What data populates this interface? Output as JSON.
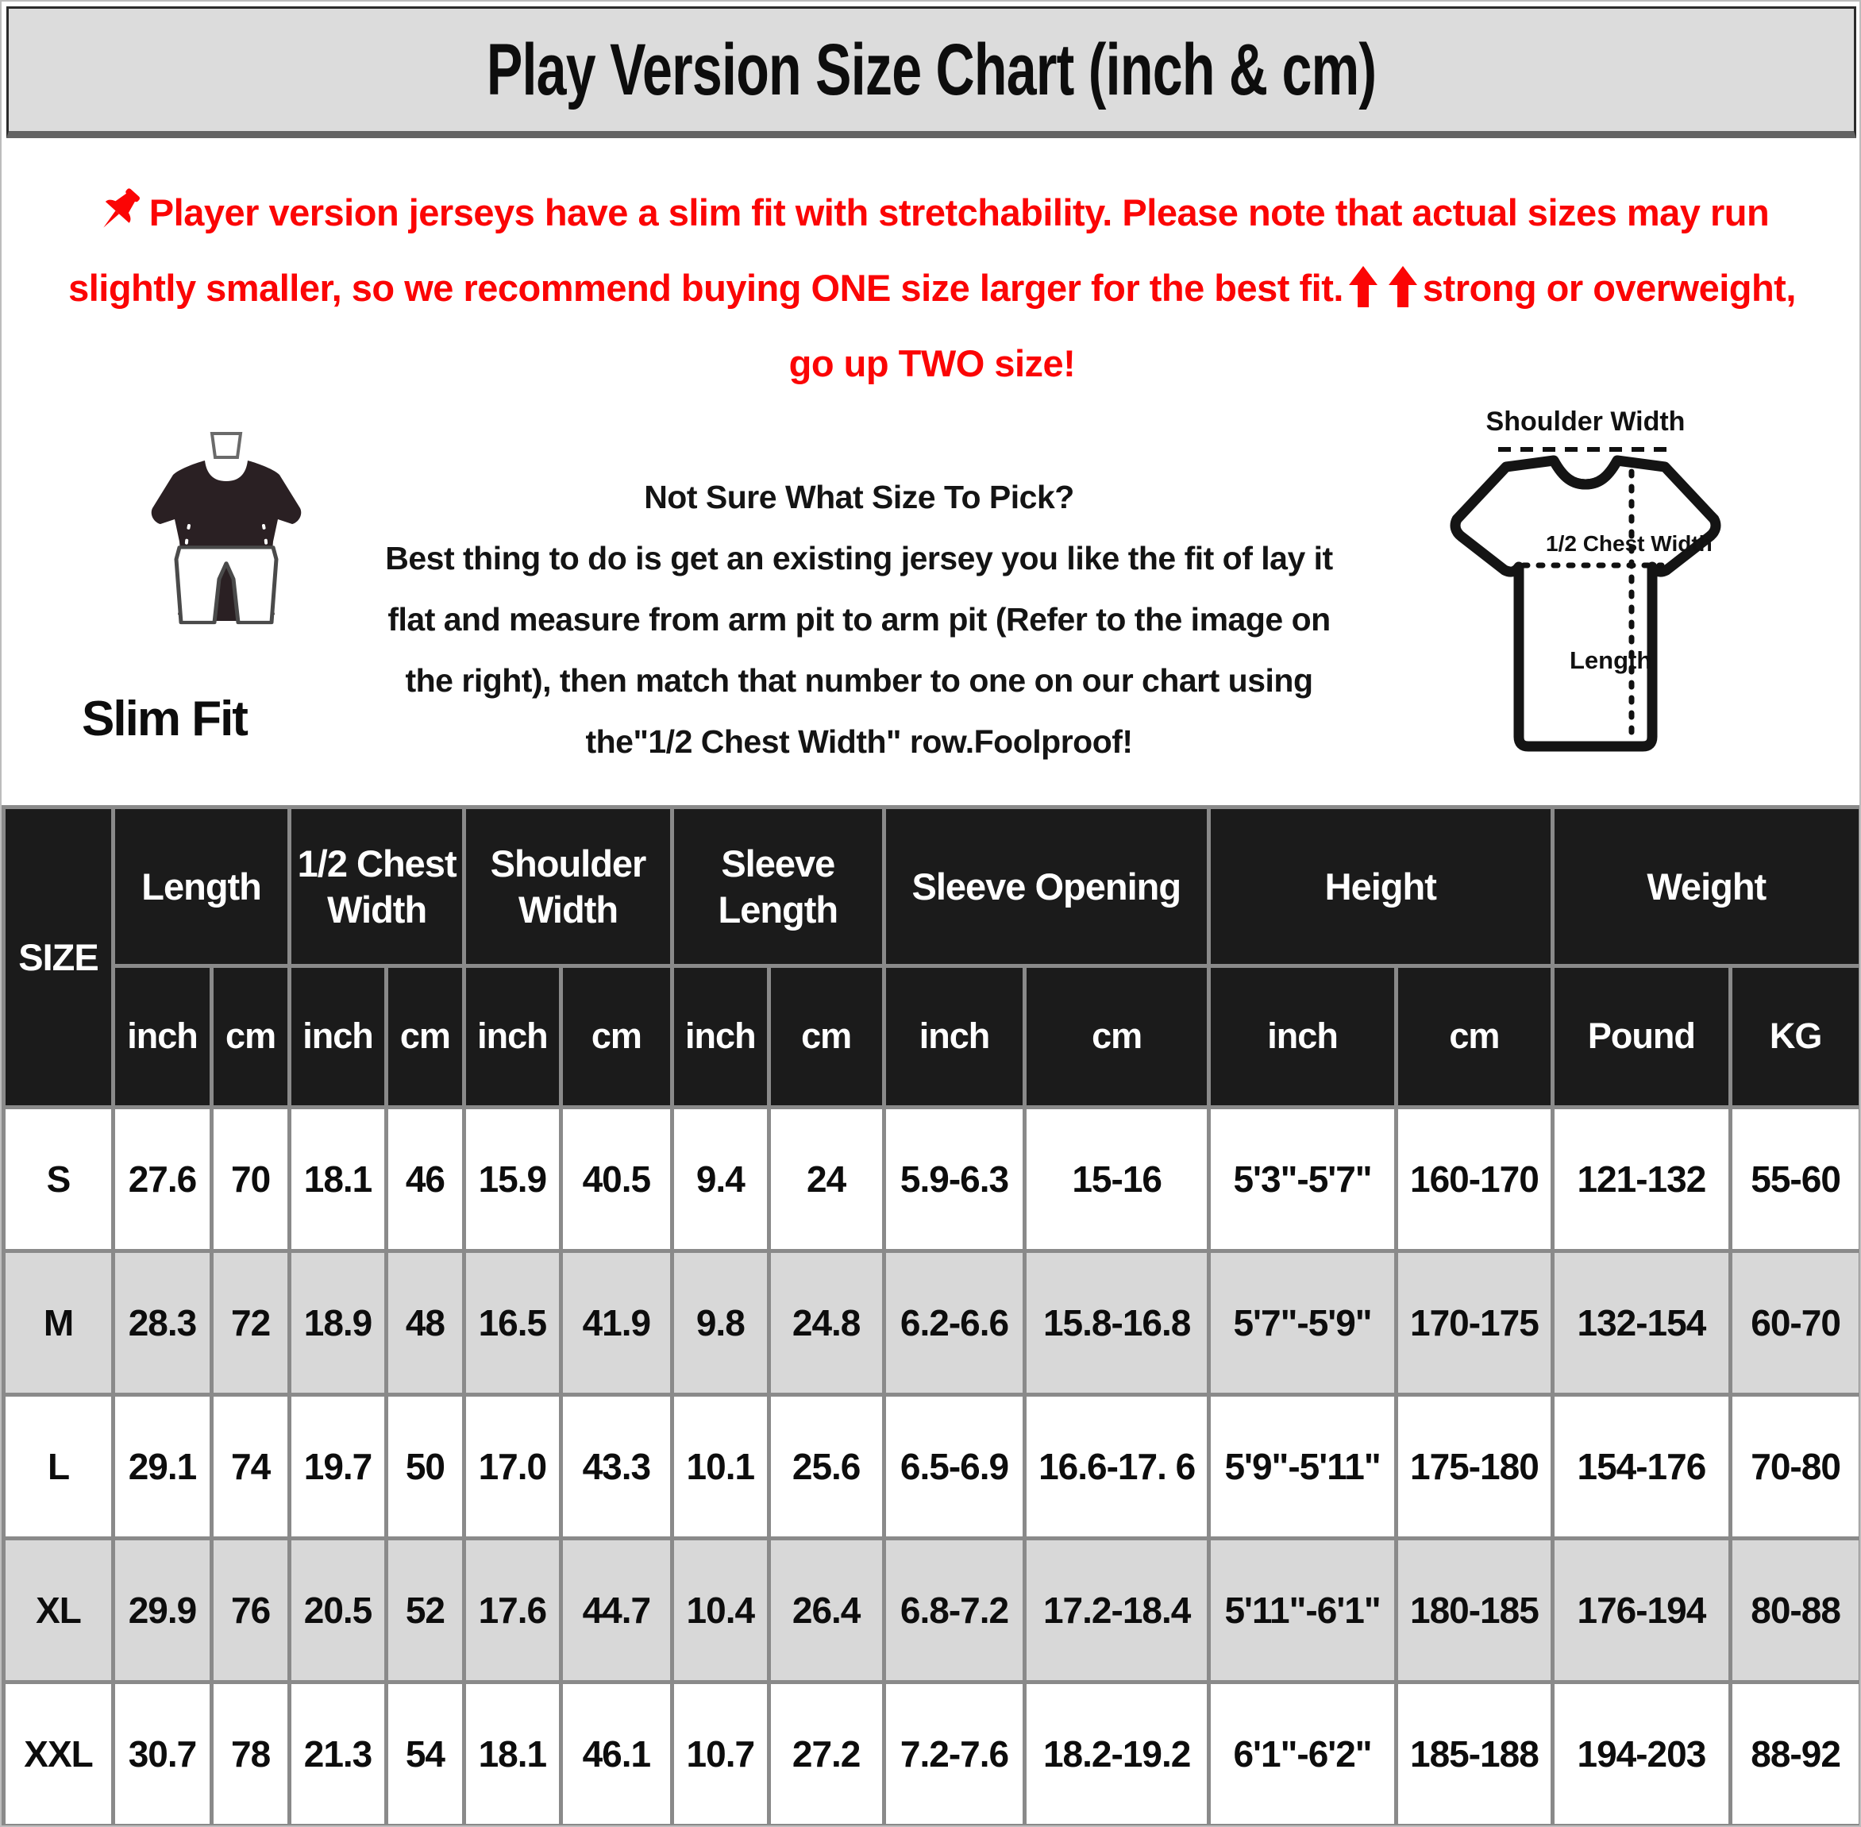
{
  "header": {
    "title": "Play Version Size Chart (inch & cm)"
  },
  "icons": {
    "pin": "red-pushpin-icon",
    "arrows": "red-up-arrow-icon",
    "pin_color": "#fb0505",
    "arrow_color": "#fb0505"
  },
  "notice": {
    "line1": "Player version jerseys have a slim fit with stretchability. Please note that actual sizes may run",
    "line2_before_arrows": "slightly smaller, so we recommend buying ONE size larger for the best fit.",
    "line2_after_arrows": "strong or overweight,",
    "line3": "go up TWO size!"
  },
  "slim_fit": {
    "label": "Slim Fit"
  },
  "guide": {
    "lines": [
      "Not Sure What Size To Pick?",
      "Best thing to do is get an existing jersey you like the fit of lay it",
      "flat and measure from arm pit to arm pit (Refer to the image on",
      "the right), then match that number to one on our chart using",
      "the\"1/2 Chest Width\" row.Foolproof!"
    ]
  },
  "diagram": {
    "shoulder_label": "Shoulder Width",
    "chest_label": "1/2 Chest Width",
    "length_label": "Length"
  },
  "table": {
    "col_groups": [
      {
        "label": "SIZE"
      },
      {
        "label": "Length"
      },
      {
        "label": "1/2 Chest Width"
      },
      {
        "label": "Shoulder Width"
      },
      {
        "label": "Sleeve Length"
      },
      {
        "label": "Sleeve Opening"
      },
      {
        "label": "Height"
      },
      {
        "label": "Weight"
      }
    ],
    "units": [
      "inch",
      "cm",
      "inch",
      "cm",
      "inch",
      "cm",
      "inch",
      "cm",
      "inch",
      "cm",
      "inch",
      "cm",
      "Pound",
      "KG"
    ],
    "rows": [
      {
        "size": "S",
        "values": [
          "27.6",
          "70",
          "18.1",
          "46",
          "15.9",
          "40.5",
          "9.4",
          "24",
          "5.9-6.3",
          "15-16",
          "5'3\"-5'7\"",
          "160-170",
          "121-132",
          "55-60"
        ]
      },
      {
        "size": "M",
        "values": [
          "28.3",
          "72",
          "18.9",
          "48",
          "16.5",
          "41.9",
          "9.8",
          "24.8",
          "6.2-6.6",
          "15.8-16.8",
          "5'7\"-5'9\"",
          "170-175",
          "132-154",
          "60-70"
        ]
      },
      {
        "size": "L",
        "values": [
          "29.1",
          "74",
          "19.7",
          "50",
          "17.0",
          "43.3",
          "10.1",
          "25.6",
          "6.5-6.9",
          "16.6-17. 6",
          "5'9\"-5'11\"",
          "175-180",
          "154-176",
          "70-80"
        ]
      },
      {
        "size": "XL",
        "values": [
          "29.9",
          "76",
          "20.5",
          "52",
          "17.6",
          "44.7",
          "10.4",
          "26.4",
          "6.8-7.2",
          "17.2-18.4",
          "5'11\"-6'1\"",
          "180-185",
          "176-194",
          "80-88"
        ]
      },
      {
        "size": "XXL",
        "values": [
          "30.7",
          "78",
          "21.3",
          "54",
          "18.1",
          "46.1",
          "10.7",
          "27.2",
          "7.2-7.6",
          "18.2-19.2",
          "6'1\"-6'2\"",
          "185-188",
          "194-203",
          "88-92"
        ]
      }
    ],
    "colWidths": [
      5.9,
      5.3,
      4.2,
      5.2,
      4.2,
      5.2,
      6.0,
      5.2,
      6.2,
      7.6,
      9.9,
      10.1,
      8.4,
      9.6,
      7.0
    ]
  }
}
